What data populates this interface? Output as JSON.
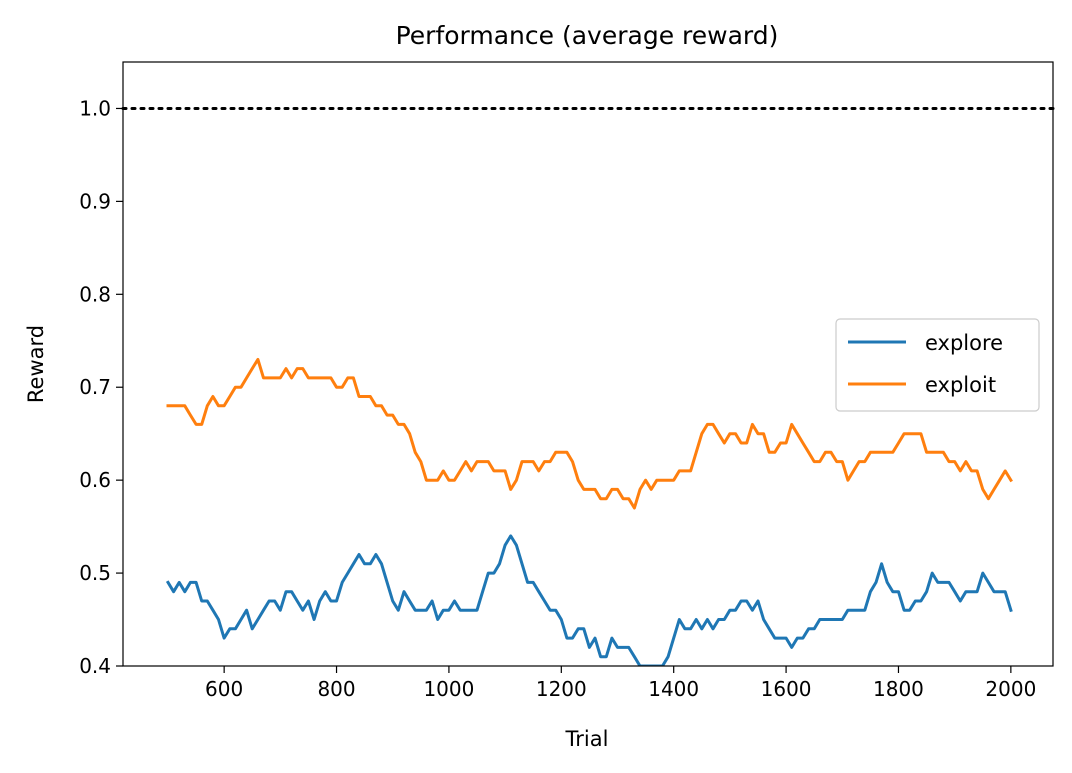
{
  "chart_data": {
    "type": "line",
    "title": "Performance (average reward)",
    "xlabel": "Trial",
    "ylabel": "Reward",
    "xlim": [
      420,
      2075
    ],
    "ylim": [
      0.4,
      1.05
    ],
    "xticks": [
      600,
      800,
      1000,
      1200,
      1400,
      1600,
      1800,
      2000
    ],
    "yticks": [
      0.4,
      0.5,
      0.6,
      0.7,
      0.8,
      0.9,
      1.0
    ],
    "xtick_labels": [
      "600",
      "800",
      "1000",
      "1200",
      "1400",
      "1600",
      "1800",
      "2000"
    ],
    "ytick_labels": [
      "0.4",
      "0.5",
      "0.6",
      "0.7",
      "0.8",
      "0.9",
      "1.0"
    ],
    "reference_line": {
      "y": 1.0,
      "style": "dotted",
      "color": "#000000"
    },
    "legend": {
      "position": "center-right"
    },
    "series": [
      {
        "name": "explore",
        "color": "#1f77b4",
        "x": [
          500,
          510,
          520,
          530,
          540,
          550,
          560,
          570,
          580,
          590,
          600,
          610,
          620,
          630,
          640,
          650,
          660,
          670,
          680,
          690,
          700,
          710,
          720,
          730,
          740,
          750,
          760,
          770,
          780,
          790,
          800,
          810,
          820,
          830,
          840,
          850,
          860,
          870,
          880,
          890,
          900,
          910,
          920,
          930,
          940,
          950,
          960,
          970,
          980,
          990,
          1000,
          1010,
          1020,
          1030,
          1040,
          1050,
          1060,
          1070,
          1080,
          1090,
          1100,
          1110,
          1120,
          1130,
          1140,
          1150,
          1160,
          1170,
          1180,
          1190,
          1200,
          1210,
          1220,
          1230,
          1240,
          1250,
          1260,
          1270,
          1280,
          1290,
          1300,
          1310,
          1320,
          1330,
          1340,
          1350,
          1360,
          1370,
          1380,
          1390,
          1400,
          1410,
          1420,
          1430,
          1440,
          1450,
          1460,
          1470,
          1480,
          1490,
          1500,
          1510,
          1520,
          1530,
          1540,
          1550,
          1560,
          1570,
          1580,
          1590,
          1600,
          1610,
          1620,
          1630,
          1640,
          1650,
          1660,
          1670,
          1680,
          1690,
          1700,
          1710,
          1720,
          1730,
          1740,
          1750,
          1760,
          1770,
          1780,
          1790,
          1800,
          1810,
          1820,
          1830,
          1840,
          1850,
          1860,
          1870,
          1880,
          1890,
          1900,
          1910,
          1920,
          1930,
          1940,
          1950,
          1960,
          1970,
          1980,
          1990,
          2000
        ],
        "values": [
          0.49,
          0.48,
          0.49,
          0.48,
          0.49,
          0.49,
          0.47,
          0.47,
          0.46,
          0.45,
          0.43,
          0.44,
          0.44,
          0.45,
          0.46,
          0.44,
          0.45,
          0.46,
          0.47,
          0.47,
          0.46,
          0.48,
          0.48,
          0.47,
          0.46,
          0.47,
          0.45,
          0.47,
          0.48,
          0.47,
          0.47,
          0.49,
          0.5,
          0.51,
          0.52,
          0.51,
          0.51,
          0.52,
          0.51,
          0.49,
          0.47,
          0.46,
          0.48,
          0.47,
          0.46,
          0.46,
          0.46,
          0.47,
          0.45,
          0.46,
          0.46,
          0.47,
          0.46,
          0.46,
          0.46,
          0.46,
          0.48,
          0.5,
          0.5,
          0.51,
          0.53,
          0.54,
          0.53,
          0.51,
          0.49,
          0.49,
          0.48,
          0.47,
          0.46,
          0.46,
          0.45,
          0.43,
          0.43,
          0.44,
          0.44,
          0.42,
          0.43,
          0.41,
          0.41,
          0.43,
          0.42,
          0.42,
          0.42,
          0.41,
          0.4,
          0.4,
          0.4,
          0.4,
          0.4,
          0.41,
          0.43,
          0.45,
          0.44,
          0.44,
          0.45,
          0.44,
          0.45,
          0.44,
          0.45,
          0.45,
          0.46,
          0.46,
          0.47,
          0.47,
          0.46,
          0.47,
          0.45,
          0.44,
          0.43,
          0.43,
          0.43,
          0.42,
          0.43,
          0.43,
          0.44,
          0.44,
          0.45,
          0.45,
          0.45,
          0.45,
          0.45,
          0.46,
          0.46,
          0.46,
          0.46,
          0.48,
          0.49,
          0.51,
          0.49,
          0.48,
          0.48,
          0.46,
          0.46,
          0.47,
          0.47,
          0.48,
          0.5,
          0.49,
          0.49,
          0.49,
          0.48,
          0.47,
          0.48,
          0.48,
          0.48,
          0.5,
          0.49,
          0.48,
          0.48,
          0.48,
          0.46
        ]
      },
      {
        "name": "exploit",
        "color": "#ff7f0e",
        "x": [
          500,
          510,
          520,
          530,
          540,
          550,
          560,
          570,
          580,
          590,
          600,
          610,
          620,
          630,
          640,
          650,
          660,
          670,
          680,
          690,
          700,
          710,
          720,
          730,
          740,
          750,
          760,
          770,
          780,
          790,
          800,
          810,
          820,
          830,
          840,
          850,
          860,
          870,
          880,
          890,
          900,
          910,
          920,
          930,
          940,
          950,
          960,
          970,
          980,
          990,
          1000,
          1010,
          1020,
          1030,
          1040,
          1050,
          1060,
          1070,
          1080,
          1090,
          1100,
          1110,
          1120,
          1130,
          1140,
          1150,
          1160,
          1170,
          1180,
          1190,
          1200,
          1210,
          1220,
          1230,
          1240,
          1250,
          1260,
          1270,
          1280,
          1290,
          1300,
          1310,
          1320,
          1330,
          1340,
          1350,
          1360,
          1370,
          1380,
          1390,
          1400,
          1410,
          1420,
          1430,
          1440,
          1450,
          1460,
          1470,
          1480,
          1490,
          1500,
          1510,
          1520,
          1530,
          1540,
          1550,
          1560,
          1570,
          1580,
          1590,
          1600,
          1610,
          1620,
          1630,
          1640,
          1650,
          1660,
          1670,
          1680,
          1690,
          1700,
          1710,
          1720,
          1730,
          1740,
          1750,
          1760,
          1770,
          1780,
          1790,
          1800,
          1810,
          1820,
          1830,
          1840,
          1850,
          1860,
          1870,
          1880,
          1890,
          1900,
          1910,
          1920,
          1930,
          1940,
          1950,
          1960,
          1970,
          1980,
          1990,
          2000
        ],
        "values": [
          0.68,
          0.68,
          0.68,
          0.68,
          0.67,
          0.66,
          0.66,
          0.68,
          0.69,
          0.68,
          0.68,
          0.69,
          0.7,
          0.7,
          0.71,
          0.72,
          0.73,
          0.71,
          0.71,
          0.71,
          0.71,
          0.72,
          0.71,
          0.72,
          0.72,
          0.71,
          0.71,
          0.71,
          0.71,
          0.71,
          0.7,
          0.7,
          0.71,
          0.71,
          0.69,
          0.69,
          0.69,
          0.68,
          0.68,
          0.67,
          0.67,
          0.66,
          0.66,
          0.65,
          0.63,
          0.62,
          0.6,
          0.6,
          0.6,
          0.61,
          0.6,
          0.6,
          0.61,
          0.62,
          0.61,
          0.62,
          0.62,
          0.62,
          0.61,
          0.61,
          0.61,
          0.59,
          0.6,
          0.62,
          0.62,
          0.62,
          0.61,
          0.62,
          0.62,
          0.63,
          0.63,
          0.63,
          0.62,
          0.6,
          0.59,
          0.59,
          0.59,
          0.58,
          0.58,
          0.59,
          0.59,
          0.58,
          0.58,
          0.57,
          0.59,
          0.6,
          0.59,
          0.6,
          0.6,
          0.6,
          0.6,
          0.61,
          0.61,
          0.61,
          0.63,
          0.65,
          0.66,
          0.66,
          0.65,
          0.64,
          0.65,
          0.65,
          0.64,
          0.64,
          0.66,
          0.65,
          0.65,
          0.63,
          0.63,
          0.64,
          0.64,
          0.66,
          0.65,
          0.64,
          0.63,
          0.62,
          0.62,
          0.63,
          0.63,
          0.62,
          0.62,
          0.6,
          0.61,
          0.62,
          0.62,
          0.63,
          0.63,
          0.63,
          0.63,
          0.63,
          0.64,
          0.65,
          0.65,
          0.65,
          0.65,
          0.63,
          0.63,
          0.63,
          0.63,
          0.62,
          0.62,
          0.61,
          0.62,
          0.61,
          0.61,
          0.59,
          0.58,
          0.59,
          0.6,
          0.61,
          0.6
        ]
      }
    ]
  }
}
